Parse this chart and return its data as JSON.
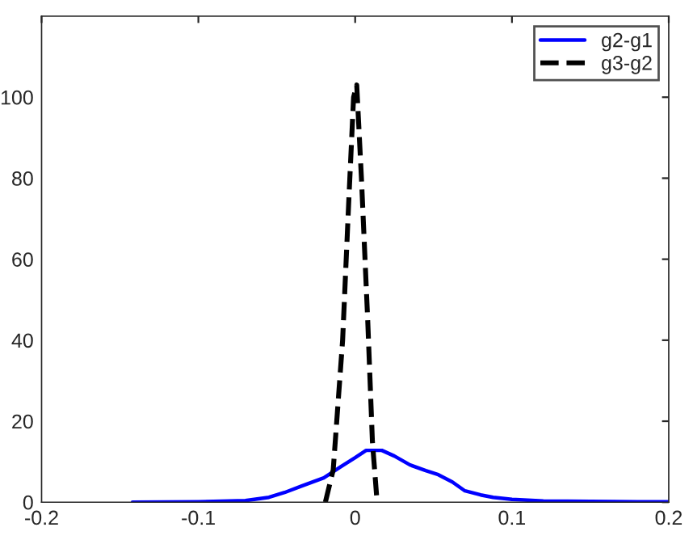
{
  "chart_data": {
    "type": "line",
    "xlim": [
      -0.2,
      0.2
    ],
    "xticks": [
      -0.2,
      -0.1,
      0,
      0.1,
      0.2
    ],
    "ylim": [
      0,
      120
    ],
    "yticks": [
      0,
      20,
      40,
      60,
      80,
      100
    ],
    "grid": false,
    "legend": "top right",
    "marker": "none",
    "series": [
      {
        "name": "g2-g1",
        "color": "#0000ff",
        "line_style": "solid",
        "x": [
          -0.142,
          -0.1,
          -0.07,
          -0.055,
          -0.045,
          -0.034,
          -0.02,
          -0.009,
          0.0,
          0.007,
          0.017,
          0.025,
          0.035,
          0.045,
          0.053,
          0.062,
          0.07,
          0.08,
          0.088,
          0.1,
          0.12,
          0.15,
          0.18,
          0.2
        ],
        "values": [
          0,
          0.1,
          0.4,
          1.2,
          2.4,
          4,
          6,
          8.8,
          11,
          12.8,
          12.8,
          11.4,
          9.2,
          7.8,
          6.8,
          5,
          2.8,
          1.8,
          1.2,
          0.7,
          0.3,
          0.2,
          0.1,
          0.1
        ]
      },
      {
        "name": "g3-g2",
        "color": "#000000",
        "line_style": "dashed",
        "x": [
          -0.019,
          -0.014,
          -0.008,
          -0.004,
          -0.001,
          0.001,
          0.004,
          0.008,
          0.011,
          0.014
        ],
        "values": [
          0,
          8,
          40,
          75,
          100,
          103,
          80,
          45,
          15,
          0
        ]
      }
    ]
  }
}
